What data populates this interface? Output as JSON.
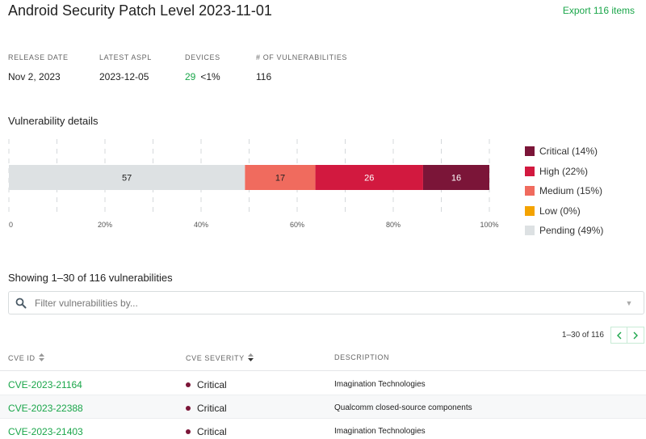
{
  "header": {
    "title": "Android Security Patch Level 2023-11-01",
    "export_label": "Export 116 items"
  },
  "stats": {
    "release_date": {
      "label": "RELEASE DATE",
      "value": "Nov 2, 2023"
    },
    "latest_aspl": {
      "label": "LATEST ASPL",
      "value": "2023-12-05"
    },
    "devices": {
      "label": "DEVICES",
      "count": "29",
      "pct": "<1%"
    },
    "vulns": {
      "label": "# OF VULNERABILITIES",
      "value": "116"
    }
  },
  "details_title": "Vulnerability details",
  "chart_data": {
    "type": "bar",
    "orientation": "horizontal-stacked",
    "series": [
      {
        "name": "Pending",
        "value": 57,
        "color": "#dde1e3"
      },
      {
        "name": "Medium",
        "value": 17,
        "color": "#f06b5e"
      },
      {
        "name": "High",
        "value": 26,
        "color": "#d2193f"
      },
      {
        "name": "Critical",
        "value": 16,
        "color": "#7b1538"
      }
    ],
    "total": 116,
    "x_ticks": [
      "0",
      "20%",
      "40%",
      "60%",
      "80%",
      "100%"
    ],
    "grid": true
  },
  "legend": [
    {
      "label": "Critical (14%)",
      "color": "#7b1538"
    },
    {
      "label": "High (22%)",
      "color": "#d2193f"
    },
    {
      "label": "Medium (15%)",
      "color": "#f06b5e"
    },
    {
      "label": "Low (0%)",
      "color": "#f4a300"
    },
    {
      "label": "Pending (49%)",
      "color": "#dde1e3"
    }
  ],
  "list": {
    "showing": "Showing 1–30 of 116 vulnerabilities",
    "filter_placeholder": "Filter vulnerabilities by...",
    "range": "1–30 of 116",
    "columns": {
      "cve": "CVE ID",
      "severity": "CVE SEVERITY",
      "description": "DESCRIPTION"
    },
    "rows": [
      {
        "cve": "CVE-2023-21164",
        "severity": "Critical",
        "description": "Imagination Technologies"
      },
      {
        "cve": "CVE-2023-22388",
        "severity": "Critical",
        "description": "Qualcomm closed-source components"
      },
      {
        "cve": "CVE-2023-21403",
        "severity": "Critical",
        "description": "Imagination Technologies"
      }
    ]
  }
}
